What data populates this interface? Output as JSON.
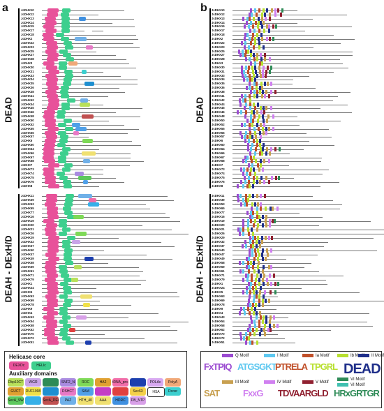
{
  "panel_a": {
    "letter": "a",
    "dead_genes": [
      "JcDHX10",
      "JcDHX12",
      "JcDHX13",
      "JcDHX14",
      "JcDHX15",
      "JcDHX17",
      "JcDHX18",
      "JcDHX2",
      "JcDHX22",
      "JcDHX23",
      "JcDHX25",
      "JcDHX27",
      "JcDHX28",
      "JcDHX3",
      "JcDHX30",
      "JcDHX31",
      "JcDHX33",
      "JcDHX34",
      "JcDHX35",
      "JcDHX36",
      "JcDHX38",
      "JcDHX41",
      "JcDHX42",
      "JcDHX44",
      "JcDHX45",
      "JcDHX46",
      "JcDHX48",
      "JcDHX50",
      "JcDHX52",
      "JcDHX55",
      "JcDHX56",
      "JcDHX57",
      "JcDHX6",
      "JcDHX60",
      "JcDHX64",
      "JcDHX66",
      "JcDHX67",
      "JcDHX68",
      "JcDHX7",
      "JcDHX73",
      "JcDHX74",
      "JcDHX75",
      "JcDHX76",
      "JcDHX8"
    ],
    "deah_genes": [
      "JcDHX11",
      "JcDHX39",
      "JcDHX53",
      "JcDHX65",
      "JcDHX77",
      "JcDHX16",
      "JcDHX19",
      "JcDHX20",
      "JcDHX21",
      "JcDHX26",
      "JcDHX29",
      "JcDHX32",
      "JcDHX37",
      "JcDHX40",
      "JcDHX47",
      "JcDHX49",
      "JcDHX58",
      "JcDHX59",
      "JcDHX61",
      "JcDHX71",
      "JcDHX79",
      "JcDHX1",
      "JcDHX24",
      "JcDHX5",
      "JcDHX63",
      "JcDHX69",
      "JcDHX78",
      "JcDHX9",
      "JcDHX4",
      "JcDHX43",
      "JcDHX54",
      "JcDHX58",
      "JcDHX62",
      "JcDHX70",
      "JcDHX72",
      "JcDHX51"
    ],
    "dead_label": "DEAD",
    "deah_label": "DEAH - DExH/D",
    "legend": {
      "core_title": "Helicase core",
      "core_items": [
        {
          "label": "DEXDc",
          "color": "#e8529a"
        },
        {
          "label": "HELIc",
          "color": "#3ecf8e"
        }
      ],
      "aux_title": "Auxiliary domains",
      "aux_items": [
        {
          "label": "Dbp10CT",
          "color": "#b8e05a"
        },
        {
          "label": "WGR",
          "color": "#c9a4e8"
        },
        {
          "label": "",
          "color": "#2e8b57"
        },
        {
          "label": "SNF2_N",
          "color": "#a98be0"
        },
        {
          "label": "ROC",
          "color": "#7ed957"
        },
        {
          "label": "HA2",
          "color": "#e0a030"
        },
        {
          "label": "tRNA_pro-Arch",
          "color": "#f06ca8"
        },
        {
          "label": "",
          "color": "#1d3fae"
        },
        {
          "label": "POLAc",
          "color": "#d7a8f0"
        },
        {
          "label": "PolyA",
          "color": "#f0a878"
        },
        {
          "label": "GUCT",
          "color": "#e0a030"
        },
        {
          "label": "DUF1998",
          "color": "#f0e04a"
        },
        {
          "label": "",
          "color": "#1e8fd0"
        },
        {
          "label": "DSHCT",
          "color": "#e879c6"
        },
        {
          "label": "SAM",
          "color": "#50a0e8"
        },
        {
          "label": "",
          "color": "#c43cc4"
        },
        {
          "label": "",
          "color": "#e04040"
        },
        {
          "label": "Sec63",
          "color": "#f4d04a"
        },
        {
          "label": "HSA",
          "color": "#ffffff"
        },
        {
          "label": "Dcoxr",
          "color": "#3ccfcf"
        },
        {
          "label": "SecA_SW",
          "color": "#5ec85e"
        },
        {
          "label": "",
          "color": "#36b0e8"
        },
        {
          "label": "SecA_DEAD",
          "color": "#c05050"
        },
        {
          "label": "PAZ",
          "color": "#70b0e8"
        },
        {
          "label": "HTH_40",
          "color": "#f0e070"
        },
        {
          "label": "AAA",
          "color": "#f0e070"
        },
        {
          "label": "HDRC",
          "color": "#4090e0"
        },
        {
          "label": "DB_NTP",
          "color": "#d8a0e8"
        }
      ]
    }
  },
  "panel_b": {
    "letter": "b",
    "dead_label": "DEAD",
    "deah_label": "DEAH - DExH/D",
    "motif_keys": [
      {
        "label": "Q Motif",
        "color": "#9b4bd1"
      },
      {
        "label": "I Motif",
        "color": "#5ec8f0"
      },
      {
        "label": "Ia Motif",
        "color": "#c0502a"
      },
      {
        "label": "Ib Motif",
        "color": "#b8e030"
      },
      {
        "label": "II Motif",
        "color": "#1f2f8a"
      },
      {
        "label": "III Motif",
        "color": "#c8a050"
      },
      {
        "label": "IV Motif",
        "color": "#d080f0"
      },
      {
        "label": "V Motif",
        "color": "#902030"
      },
      {
        "label": "VI Motif",
        "color": "#2e8b57"
      },
      {
        "label": "VI Motif",
        "color": "#40c0b0"
      }
    ],
    "logos": [
      {
        "text": "FxTPIQ",
        "color": "#9b4bd1"
      },
      {
        "text": "ATGSGKT",
        "color": "#5ec8f0"
      },
      {
        "text": "PTRELA",
        "color": "#c0502a"
      },
      {
        "text": "TPGRL",
        "color": "#b8e030"
      },
      {
        "text": "DEAD",
        "color": "#1f2f8a"
      },
      {
        "text": "SAT",
        "color": "#c8a050"
      },
      {
        "text": "FxxG",
        "color": "#d080f0"
      },
      {
        "text": "TDVAARGLD",
        "color": "#902030"
      },
      {
        "text": "HRxGRTGR",
        "color": "#2e8b57"
      }
    ]
  }
}
